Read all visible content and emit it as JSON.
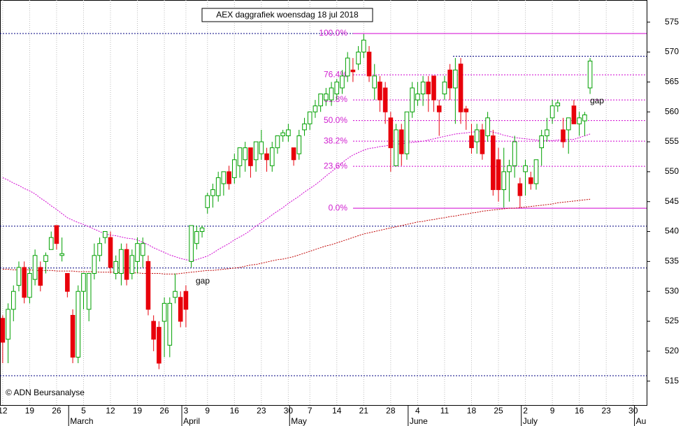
{
  "chart_data": {
    "type": "candlestick",
    "title": "AEX daggrafiek woensdag 18 jul 2018",
    "footer": "© ADN Beursanalyse",
    "up_color": "#00a000",
    "down_color": "#e8000b",
    "categories": [
      "12",
      null,
      null,
      null,
      null,
      "19",
      null,
      null,
      null,
      null,
      "26",
      null,
      null,
      null,
      null,
      "5",
      null,
      null,
      null,
      null,
      "12",
      null,
      null,
      null,
      null,
      "19",
      null,
      null,
      null,
      null,
      "26",
      null,
      null,
      null,
      "3",
      null,
      null,
      null,
      "9",
      null,
      null,
      null,
      null,
      "16",
      null,
      null,
      null,
      null,
      "23",
      null,
      null,
      null,
      null,
      "30",
      null,
      null,
      null,
      "7",
      null,
      null,
      null,
      null,
      "14",
      null,
      null,
      null,
      null,
      "21",
      null,
      null,
      null,
      null,
      "28",
      null,
      null,
      null,
      null,
      "4",
      null,
      null,
      null,
      null,
      "11",
      null,
      null,
      null,
      null,
      "18",
      null,
      null,
      null,
      null,
      "25",
      null,
      null,
      null,
      null,
      "2",
      null,
      null,
      null,
      null,
      "9",
      null,
      null,
      null,
      null,
      "16",
      null,
      null,
      null,
      null,
      "23",
      null,
      null,
      null,
      null,
      "30",
      null,
      null
    ],
    "months": [
      null,
      null,
      null,
      null,
      null,
      null,
      null,
      null,
      null,
      null,
      null,
      null,
      null,
      "March",
      null,
      null,
      null,
      null,
      null,
      null,
      null,
      null,
      null,
      null,
      null,
      null,
      null,
      null,
      null,
      null,
      null,
      null,
      null,
      null,
      "April",
      null,
      null,
      null,
      null,
      null,
      null,
      null,
      null,
      null,
      null,
      null,
      null,
      null,
      null,
      null,
      null,
      null,
      null,
      null,
      "May",
      null,
      null,
      null,
      null,
      null,
      null,
      null,
      null,
      null,
      null,
      null,
      null,
      null,
      null,
      null,
      null,
      null,
      null,
      null,
      null,
      null,
      "June",
      null,
      null,
      null,
      null,
      null,
      null,
      null,
      null,
      null,
      null,
      null,
      null,
      null,
      null,
      null,
      null,
      null,
      null,
      null,
      null,
      "July",
      null,
      null,
      null,
      null,
      null,
      null,
      null,
      null,
      null,
      null,
      null,
      null,
      null,
      null,
      null,
      null,
      null,
      null,
      null,
      null,
      "Au"
    ],
    "open": [
      525.5,
      522,
      527,
      531,
      534,
      529,
      532,
      534,
      535,
      537,
      541,
      536,
      533,
      526,
      519,
      530,
      527,
      533,
      536,
      539,
      539,
      533,
      533,
      537,
      533,
      535,
      536,
      535,
      525,
      524,
      525,
      521,
      529,
      529,
      530,
      535,
      538,
      540,
      544,
      546,
      546,
      548,
      550,
      549,
      551,
      552,
      554,
      552,
      553,
      553,
      551,
      554,
      556,
      556,
      554,
      553,
      557,
      558,
      560,
      561,
      562,
      562,
      563,
      564,
      566,
      567,
      568,
      570,
      570,
      564,
      565,
      564,
      559,
      551,
      557,
      553,
      560,
      562,
      563,
      565,
      566,
      561,
      563,
      567,
      564,
      568,
      560.5,
      556,
      555,
      557,
      556,
      556,
      552,
      547,
      550,
      551,
      548,
      550,
      549,
      548,
      554,
      556,
      559,
      561,
      557,
      557,
      561,
      558,
      558.5,
      564,
      null,
      null,
      null,
      null,
      null,
      null,
      null,
      null,
      null,
      null
    ],
    "high": [
      526,
      528,
      531,
      535,
      535,
      534,
      537,
      535,
      536.5,
      540,
      541,
      539,
      533,
      527,
      531,
      533,
      533,
      538,
      539,
      540,
      540,
      536,
      538,
      538,
      537,
      539,
      539,
      536,
      526,
      525,
      529,
      529,
      533,
      530,
      531,
      541,
      541,
      541,
      546.5,
      548,
      550,
      550,
      551,
      553,
      554,
      555,
      554,
      555,
      557,
      554,
      555,
      556,
      557,
      558,
      554,
      557,
      559,
      560,
      562,
      563,
      564,
      565,
      565.5,
      567,
      570,
      569,
      571,
      573,
      571,
      568,
      566,
      565,
      560,
      558,
      558,
      560,
      565,
      565,
      566,
      566,
      566,
      562,
      566,
      568,
      569,
      569,
      561,
      558,
      558,
      558,
      560,
      557,
      554,
      554,
      552,
      556,
      549,
      552,
      550,
      552,
      557,
      559,
      562,
      562,
      559,
      559,
      562,
      560,
      560,
      569,
      null,
      null,
      null,
      null,
      null,
      null,
      null,
      null,
      null,
      null
    ],
    "low": [
      518,
      518,
      525,
      530,
      528,
      528,
      531,
      530,
      533,
      537,
      537,
      535,
      529,
      518,
      518,
      527,
      525,
      532,
      535,
      538,
      533,
      532,
      531,
      531,
      532,
      533,
      534,
      526,
      520,
      517,
      519,
      519,
      528,
      524,
      524,
      534,
      537,
      539,
      543,
      544,
      545,
      546,
      547,
      548,
      549,
      550,
      549,
      550,
      552,
      550,
      550,
      553,
      555,
      555,
      551,
      552,
      556,
      557,
      559,
      560,
      561,
      561,
      562,
      563,
      565,
      565,
      567,
      569,
      565,
      562,
      560,
      558,
      550,
      551,
      551,
      552,
      559,
      561,
      561,
      560,
      560,
      556,
      562,
      562,
      558,
      558,
      557,
      553,
      553,
      552,
      555,
      546,
      545,
      544,
      545,
      549,
      544,
      546,
      547,
      547,
      551,
      555,
      558,
      560,
      554,
      553,
      558,
      556,
      556,
      563,
      null,
      null,
      null,
      null,
      null,
      null,
      null,
      null,
      null,
      null
    ],
    "close": [
      521.5,
      527,
      530,
      534,
      529,
      533,
      536,
      531,
      536,
      539,
      538,
      536.3,
      530,
      519,
      530,
      533,
      533,
      536,
      538,
      540,
      534,
      535,
      537,
      532,
      536,
      538,
      538,
      527,
      522,
      518,
      528,
      528,
      530,
      525,
      527,
      541,
      540,
      540.6,
      546,
      547,
      549,
      550,
      548,
      552,
      554,
      554,
      551,
      555,
      555,
      552,
      554,
      556,
      556.5,
      557,
      552,
      556,
      558,
      560,
      561,
      563,
      563,
      564,
      565,
      566,
      569,
      566.7,
      570,
      572,
      566,
      566,
      562,
      560,
      554,
      557,
      553,
      560,
      564,
      563,
      565,
      563,
      562,
      560,
      565,
      564,
      567,
      560,
      560,
      554,
      557,
      553,
      559,
      547,
      547,
      550,
      551,
      555,
      546,
      551,
      548,
      552,
      556,
      557,
      561,
      561.5,
      555,
      559,
      558,
      559,
      559.5,
      568.5,
      null,
      null,
      null,
      null,
      null,
      null,
      null,
      null,
      null,
      null
    ],
    "moving_averages": [
      {
        "color": "#c00000",
        "values": [
          533.7,
          533.7,
          533.6,
          533.6,
          533.6,
          533.6,
          533.5,
          533.5,
          533.5,
          533.5,
          533.4,
          533.4,
          533.4,
          533.4,
          533.3,
          533.3,
          533.3,
          533.3,
          533.2,
          533.2,
          533.2,
          533.2,
          533.1,
          533.1,
          533.1,
          533.1,
          533.0,
          533.0,
          533.0,
          533.0,
          532.9,
          532.9,
          532.9,
          533.0,
          533.1,
          533.2,
          533.3,
          533.4,
          533.5,
          533.5,
          533.6,
          533.7,
          533.8,
          533.9,
          534.0,
          534.2,
          534.4,
          534.5,
          534.7,
          534.9,
          535.1,
          535.3,
          535.4,
          535.6,
          535.8,
          536.1,
          536.4,
          536.7,
          537.0,
          537.3,
          537.6,
          537.8,
          538.1,
          538.4,
          538.7,
          539.0,
          539.3,
          539.6,
          539.8,
          540.0,
          540.2,
          540.4,
          540.6,
          540.8,
          541.0,
          541.2,
          541.4,
          541.6,
          541.7,
          541.9,
          542.0,
          542.2,
          542.3,
          542.5,
          542.6,
          542.8,
          542.9,
          543.1,
          543.2,
          543.4,
          543.5,
          543.6,
          543.7,
          543.8,
          543.9,
          543.9,
          544.0,
          544.1,
          544.2,
          544.3,
          544.4,
          544.5,
          544.6,
          544.8,
          544.9,
          545.0,
          545.1,
          545.2,
          545.3,
          545.4,
          null,
          null,
          null,
          null,
          null,
          null,
          null,
          null,
          null,
          null
        ]
      },
      {
        "color": "#d000d0",
        "values": [
          549.0,
          548.6,
          548.1,
          547.7,
          547.2,
          546.8,
          546.3,
          545.6,
          545.0,
          544.3,
          543.7,
          543.0,
          542.3,
          541.9,
          541.5,
          541.2,
          540.8,
          540.4,
          540.0,
          539.6,
          539.4,
          539.3,
          539.1,
          538.9,
          538.8,
          538.6,
          538.2,
          537.8,
          537.3,
          536.9,
          536.5,
          536.1,
          535.8,
          535.5,
          535.3,
          535.1,
          535.3,
          535.6,
          535.9,
          536.4,
          537.0,
          537.5,
          538.0,
          538.6,
          539.1,
          539.6,
          540.2,
          540.9,
          541.5,
          542.1,
          542.8,
          543.4,
          544.0,
          544.7,
          545.3,
          545.9,
          546.6,
          547.2,
          547.8,
          548.5,
          549.3,
          550.0,
          550.7,
          551.5,
          552.2,
          552.8,
          553.2,
          553.6,
          553.9,
          554.0,
          554.2,
          554.3,
          554.5,
          554.6,
          554.7,
          554.8,
          554.9,
          555.0,
          555.1,
          555.3,
          555.5,
          555.7,
          555.9,
          556.1,
          556.3,
          556.4,
          556.5,
          556.6,
          556.7,
          556.7,
          556.8,
          556.6,
          556.4,
          556.1,
          555.9,
          555.7,
          555.6,
          555.5,
          555.4,
          555.3,
          555.2,
          555.2,
          555.2,
          555.3,
          555.3,
          555.4,
          555.4,
          555.7,
          556.0,
          556.3,
          null,
          null,
          null,
          null,
          null,
          null,
          null,
          null,
          null,
          null
        ]
      }
    ],
    "hlines": [
      573.1,
      569.3,
      540.9,
      533.9,
      515.9
    ],
    "fib_levels": [
      {
        "value": 573.1,
        "label": "100.0%"
      },
      {
        "value": 566.2,
        "label": "76.4%"
      },
      {
        "value": 562.0,
        "label": "61.8%"
      },
      {
        "value": 558.55,
        "label": "50.0%"
      },
      {
        "value": 555.1,
        "label": "38.2%"
      },
      {
        "value": 550.9,
        "label": "23.6%"
      },
      {
        "value": 543.9,
        "label": "0.0%"
      }
    ],
    "annotations": [
      "gap",
      "gap"
    ],
    "ylim": [
      511,
      578.7
    ],
    "yticks": [
      515,
      520,
      525,
      530,
      535,
      540,
      545,
      550,
      555,
      560,
      565,
      570,
      575
    ],
    "grid": true
  }
}
